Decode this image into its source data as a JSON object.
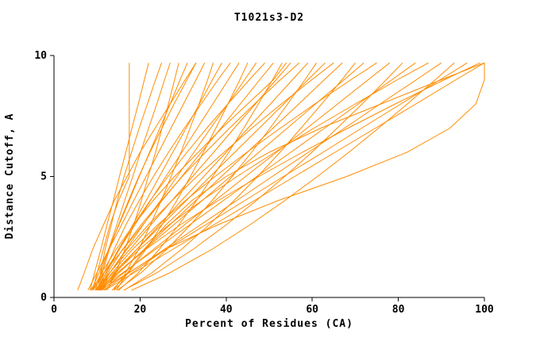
{
  "chart_data": {
    "type": "line",
    "title": "T1021s3-D2",
    "xlabel": "Percent of Residues (CA)",
    "ylabel": "Distance Cutoff, A",
    "xlim": [
      0,
      100
    ],
    "ylim": [
      0,
      10
    ],
    "xticks": [
      0,
      20,
      40,
      60,
      80,
      100
    ],
    "yticks": [
      0,
      5,
      10
    ],
    "grid": false,
    "legend": false,
    "line_color": "#ff8c00",
    "y": [
      0.3,
      1,
      2,
      3,
      4,
      5,
      6,
      7,
      8,
      9,
      9.7
    ],
    "series": [
      {
        "x": [
          9.0,
          10.0,
          11.5,
          13.0,
          15.0,
          17.5,
          17.5,
          17.5,
          17.5,
          17.5,
          17.5
        ]
      },
      {
        "x": [
          8.4,
          9.4,
          10.9,
          12.3,
          13.8,
          15.2,
          16.7,
          18.1,
          19.6,
          21.0,
          22.0
        ]
      },
      {
        "x": [
          10.2,
          10.8,
          11.9,
          13.3,
          14.7,
          16.3,
          18.0,
          19.8,
          21.7,
          23.6,
          25.0
        ]
      },
      {
        "x": [
          9.6,
          10.9,
          12.7,
          14.6,
          16.4,
          18.3,
          20.1,
          22.0,
          23.9,
          25.7,
          27.0
        ]
      },
      {
        "x": [
          12.3,
          14.3,
          16.5,
          18.5,
          20.3,
          21.9,
          23.6,
          25.1,
          26.6,
          28.0,
          29.0
        ]
      },
      {
        "x": [
          8.7,
          10.4,
          12.7,
          15.1,
          17.5,
          19.8,
          22.2,
          24.6,
          27.0,
          29.3,
          31.0
        ]
      },
      {
        "x": [
          10.3,
          11.2,
          12.9,
          15.0,
          17.3,
          19.7,
          22.3,
          25.1,
          27.9,
          30.9,
          33.0
        ]
      },
      {
        "x": [
          5.5,
          7.0,
          9.0,
          11.5,
          14.0,
          17.0,
          20.0,
          23.5,
          27.0,
          30.5,
          33.0
        ]
      },
      {
        "x": [
          7.9,
          9.9,
          12.8,
          15.7,
          18.5,
          21.4,
          24.3,
          27.2,
          30.1,
          33.0,
          35.0
        ]
      },
      {
        "x": [
          13.9,
          16.6,
          19.7,
          22.4,
          24.9,
          27.2,
          29.5,
          31.6,
          33.7,
          35.7,
          37.0
        ]
      },
      {
        "x": [
          9.9,
          12.1,
          15.2,
          18.3,
          21.4,
          24.5,
          27.6,
          30.7,
          33.8,
          36.8,
          39.0
        ]
      },
      {
        "x": [
          10.3,
          11.6,
          14.0,
          16.7,
          19.8,
          23.1,
          26.6,
          30.3,
          34.2,
          38.1,
          41.0
        ]
      },
      {
        "x": [
          9.1,
          11.6,
          15.2,
          18.8,
          22.4,
          26.0,
          29.7,
          33.3,
          36.9,
          40.5,
          43.0
        ]
      },
      {
        "x": [
          13.5,
          17.2,
          21.4,
          25.1,
          28.5,
          31.7,
          34.7,
          37.6,
          40.4,
          43.2,
          45.0
        ]
      },
      {
        "x": [
          10.2,
          12.9,
          16.8,
          20.7,
          24.7,
          28.6,
          32.5,
          36.4,
          40.4,
          44.3,
          47.0
        ]
      },
      {
        "x": [
          10.4,
          12.0,
          15.0,
          18.5,
          22.3,
          26.5,
          30.9,
          35.5,
          40.4,
          45.4,
          49.0
        ]
      },
      {
        "x": [
          8.4,
          11.5,
          16.1,
          20.6,
          25.1,
          29.7,
          34.2,
          38.8,
          43.3,
          47.8,
          51.0
        ]
      },
      {
        "x": [
          15.0,
          19.5,
          24.5,
          29.0,
          33.1,
          36.9,
          40.6,
          44.1,
          47.5,
          50.8,
          53.0
        ]
      },
      {
        "x": [
          9.0,
          11.0,
          14.5,
          18.5,
          23.0,
          28.0,
          33.5,
          39.0,
          45.0,
          51.0,
          54.0
        ]
      },
      {
        "x": [
          9.5,
          12.8,
          17.7,
          22.5,
          27.4,
          32.2,
          37.1,
          41.9,
          46.8,
          51.6,
          55.0
        ]
      },
      {
        "x": [
          10.5,
          12.4,
          16.0,
          20.2,
          24.9,
          29.8,
          35.2,
          40.8,
          46.6,
          52.6,
          57.0
        ]
      },
      {
        "x": [
          10.6,
          14.2,
          19.3,
          24.5,
          29.6,
          34.8,
          40.0,
          45.1,
          50.3,
          55.4,
          59.0
        ]
      },
      {
        "x": [
          14.7,
          20.1,
          26.3,
          31.7,
          36.7,
          41.4,
          45.9,
          50.2,
          54.3,
          58.3,
          61.0
        ]
      },
      {
        "x": [
          9.7,
          13.7,
          19.3,
          25.0,
          30.7,
          36.3,
          42.0,
          47.7,
          53.4,
          59.0,
          63.0
        ]
      },
      {
        "x": [
          10.6,
          12.9,
          17.0,
          21.9,
          27.4,
          33.2,
          39.5,
          46.0,
          52.8,
          59.9,
          65.0
        ]
      },
      {
        "x": [
          10.8,
          15.0,
          21.0,
          26.9,
          32.9,
          38.9,
          44.9,
          50.9,
          56.9,
          62.8,
          67.0
        ]
      },
      {
        "x": [
          16.3,
          22.6,
          29.7,
          36.0,
          41.8,
          47.3,
          52.5,
          57.4,
          62.2,
          66.9,
          70.0
        ]
      },
      {
        "x": [
          10.0,
          14.6,
          21.2,
          27.8,
          34.4,
          41.0,
          47.6,
          54.2,
          60.8,
          67.4,
          72.0
        ]
      },
      {
        "x": [
          10.7,
          13.4,
          18.3,
          24.1,
          30.5,
          37.4,
          44.8,
          52.6,
          60.6,
          69.0,
          75.0
        ]
      },
      {
        "x": [
          11.1,
          16.1,
          23.2,
          30.3,
          37.4,
          44.5,
          51.7,
          58.8,
          65.9,
          73.0,
          78.0
        ]
      },
      {
        "x": [
          16.2,
          23.7,
          32.4,
          40.0,
          47.0,
          53.6,
          59.9,
          65.8,
          71.6,
          77.2,
          81.0
        ]
      },
      {
        "x": [
          10.4,
          15.8,
          23.7,
          31.5,
          39.3,
          47.1,
          55.0,
          62.9,
          70.7,
          78.5,
          84.0
        ]
      },
      {
        "x": [
          10.8,
          14.0,
          19.9,
          26.7,
          34.3,
          42.5,
          51.3,
          60.4,
          70.0,
          79.8,
          87.0
        ]
      },
      {
        "x": [
          11.5,
          17.3,
          25.7,
          34.0,
          42.4,
          50.7,
          59.1,
          67.5,
          75.8,
          84.2,
          90.0
        ]
      },
      {
        "x": [
          18.0,
          26.7,
          36.8,
          45.5,
          53.6,
          61.2,
          68.5,
          75.4,
          82.1,
          88.6,
          93.0
        ]
      },
      {
        "x": [
          10.7,
          17.1,
          26.1,
          35.2,
          44.3,
          53.3,
          62.5,
          71.5,
          80.6,
          89.7,
          96.0
        ]
      },
      {
        "x": [
          11.0,
          14.6,
          21.4,
          29.3,
          38.1,
          47.6,
          57.7,
          68.3,
          79.3,
          90.7,
          99.0
        ]
      },
      {
        "x": [
          11.8,
          18.4,
          27.7,
          37.1,
          46.5,
          55.9,
          65.3,
          74.7,
          84.1,
          93.4,
          100.0
        ]
      },
      {
        "x": [
          14.5,
          17.0,
          21.0,
          26.0,
          32.0,
          40.0,
          50.0,
          62.0,
          76.0,
          90.0,
          100.0
        ]
      },
      {
        "x": [
          14.0,
          18.0,
          26.0,
          38.0,
          52.0,
          68.0,
          82.0,
          92.0,
          98.0,
          100.0,
          100.0
        ]
      }
    ]
  }
}
